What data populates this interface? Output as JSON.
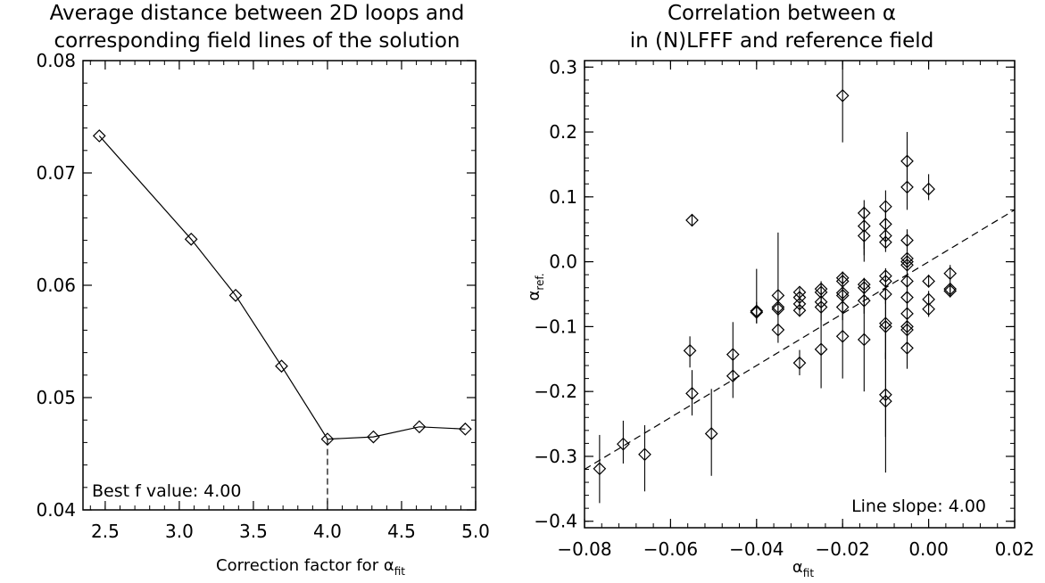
{
  "chart_data": [
    {
      "type": "line",
      "title_lines": [
        "Average distance between 2D loops and",
        "corresponding field lines of the solution"
      ],
      "xlabel_text": "Correction factor for α",
      "xlabel_sub": "fit",
      "ylabel": "",
      "xlim": [
        2.35,
        5.0
      ],
      "ylim": [
        0.04,
        0.08
      ],
      "xticks": [
        "2.5",
        "3.0",
        "3.5",
        "4.0",
        "4.5",
        "5.0"
      ],
      "xtick_values": [
        2.5,
        3.0,
        3.5,
        4.0,
        4.5,
        5.0
      ],
      "yticks": [
        "0.04",
        "0.05",
        "0.06",
        "0.07",
        "0.08"
      ],
      "ytick_values": [
        0.04,
        0.05,
        0.06,
        0.07,
        0.08
      ],
      "marker": "diamond",
      "series": [
        {
          "x": [
            2.46,
            3.08,
            3.38,
            3.69,
            4.0,
            4.31,
            4.62,
            4.93
          ],
          "y": [
            0.0733,
            0.0641,
            0.0591,
            0.0528,
            0.0463,
            0.0465,
            0.0474,
            0.0472
          ]
        }
      ],
      "best_x": 4.0,
      "annotation": "Best f value: 4.00"
    },
    {
      "type": "scatter",
      "title_lines": [
        "Correlation between α",
        "in (N)LFFF and reference field"
      ],
      "xlabel_text": "α",
      "xlabel_sub": "fit",
      "ylabel_text": "α",
      "ylabel_sub": "ref.",
      "xlim": [
        -0.08,
        0.02
      ],
      "ylim": [
        -0.41,
        0.31
      ],
      "xticks": [
        "−0.08",
        "−0.06",
        "−0.04",
        "−0.02",
        "0.00",
        "0.02"
      ],
      "xtick_values": [
        -0.08,
        -0.06,
        -0.04,
        -0.02,
        0.0,
        0.02
      ],
      "yticks": [
        "−0.4",
        "−0.3",
        "−0.2",
        "−0.1",
        "0.0",
        "0.1",
        "0.2",
        "0.3"
      ],
      "ytick_values": [
        -0.4,
        -0.3,
        -0.2,
        -0.1,
        0.0,
        0.1,
        0.2,
        0.3
      ],
      "marker": "diamond",
      "fit_line": {
        "slope": 4.0,
        "intercept": 0.0
      },
      "annotation": "Line slope: 4.00",
      "points": [
        {
          "x": -0.0765,
          "y": -0.319,
          "lo": -0.372,
          "hi": -0.267
        },
        {
          "x": -0.071,
          "y": -0.281,
          "lo": -0.311,
          "hi": -0.245
        },
        {
          "x": -0.066,
          "y": -0.297,
          "lo": -0.354,
          "hi": -0.252
        },
        {
          "x": -0.055,
          "y": 0.064,
          "lo": 0.056,
          "hi": 0.072
        },
        {
          "x": -0.0555,
          "y": -0.137,
          "lo": -0.163,
          "hi": -0.115
        },
        {
          "x": -0.055,
          "y": -0.203,
          "lo": -0.237,
          "hi": -0.167
        },
        {
          "x": -0.0505,
          "y": -0.265,
          "lo": -0.33,
          "hi": -0.196
        },
        {
          "x": -0.0455,
          "y": -0.143,
          "lo": -0.175,
          "hi": -0.093
        },
        {
          "x": -0.0455,
          "y": -0.176,
          "lo": -0.21,
          "hi": -0.142
        },
        {
          "x": -0.04,
          "y": -0.076,
          "lo": -0.095,
          "hi": -0.011
        },
        {
          "x": -0.04,
          "y": -0.078,
          "lo": -0.095,
          "hi": -0.062
        },
        {
          "x": -0.035,
          "y": -0.052,
          "lo": -0.064,
          "hi": 0.045
        },
        {
          "x": -0.035,
          "y": -0.07,
          "lo": -0.085,
          "hi": -0.055
        },
        {
          "x": -0.035,
          "y": -0.073,
          "lo": -0.085,
          "hi": -0.06
        },
        {
          "x": -0.035,
          "y": -0.105,
          "lo": -0.125,
          "hi": -0.085
        },
        {
          "x": -0.03,
          "y": -0.047,
          "lo": -0.055,
          "hi": -0.04
        },
        {
          "x": -0.03,
          "y": -0.055,
          "lo": -0.065,
          "hi": -0.045
        },
        {
          "x": -0.03,
          "y": -0.065,
          "lo": -0.075,
          "hi": -0.055
        },
        {
          "x": -0.03,
          "y": -0.075,
          "lo": -0.085,
          "hi": -0.065
        },
        {
          "x": -0.03,
          "y": -0.156,
          "lo": -0.175,
          "hi": -0.136
        },
        {
          "x": -0.025,
          "y": -0.042,
          "lo": -0.055,
          "hi": -0.03
        },
        {
          "x": -0.025,
          "y": -0.047,
          "lo": -0.06,
          "hi": -0.035
        },
        {
          "x": -0.025,
          "y": -0.062,
          "lo": -0.08,
          "hi": -0.045
        },
        {
          "x": -0.025,
          "y": -0.07,
          "lo": -0.09,
          "hi": -0.05
        },
        {
          "x": -0.025,
          "y": -0.135,
          "lo": -0.195,
          "hi": -0.07
        },
        {
          "x": -0.02,
          "y": 0.256,
          "lo": 0.184,
          "hi": 0.316
        },
        {
          "x": -0.02,
          "y": -0.025,
          "lo": -0.035,
          "hi": -0.015
        },
        {
          "x": -0.02,
          "y": -0.03,
          "lo": -0.04,
          "hi": -0.02
        },
        {
          "x": -0.02,
          "y": -0.048,
          "lo": -0.06,
          "hi": -0.035
        },
        {
          "x": -0.02,
          "y": -0.052,
          "lo": -0.065,
          "hi": -0.04
        },
        {
          "x": -0.02,
          "y": -0.07,
          "lo": -0.09,
          "hi": -0.05
        },
        {
          "x": -0.02,
          "y": -0.115,
          "lo": -0.18,
          "hi": -0.05
        },
        {
          "x": -0.015,
          "y": 0.075,
          "lo": 0.02,
          "hi": 0.095
        },
        {
          "x": -0.015,
          "y": 0.055,
          "lo": 0.01,
          "hi": 0.085
        },
        {
          "x": -0.015,
          "y": 0.04,
          "lo": 0.0,
          "hi": 0.07
        },
        {
          "x": -0.015,
          "y": -0.035,
          "lo": -0.045,
          "hi": -0.025
        },
        {
          "x": -0.015,
          "y": -0.04,
          "lo": -0.06,
          "hi": -0.025
        },
        {
          "x": -0.015,
          "y": -0.06,
          "lo": -0.08,
          "hi": -0.04
        },
        {
          "x": -0.015,
          "y": -0.12,
          "lo": -0.2,
          "hi": -0.04
        },
        {
          "x": -0.01,
          "y": 0.085,
          "lo": 0.06,
          "hi": 0.11
        },
        {
          "x": -0.01,
          "y": 0.058,
          "lo": 0.03,
          "hi": 0.08
        },
        {
          "x": -0.01,
          "y": 0.04,
          "lo": 0.02,
          "hi": 0.065
        },
        {
          "x": -0.01,
          "y": 0.03,
          "lo": 0.015,
          "hi": 0.05
        },
        {
          "x": -0.01,
          "y": -0.022,
          "lo": -0.03,
          "hi": -0.01
        },
        {
          "x": -0.01,
          "y": -0.03,
          "lo": -0.045,
          "hi": -0.015
        },
        {
          "x": -0.01,
          "y": -0.05,
          "lo": -0.065,
          "hi": -0.035
        },
        {
          "x": -0.01,
          "y": -0.095,
          "lo": -0.15,
          "hi": -0.04
        },
        {
          "x": -0.01,
          "y": -0.1,
          "lo": -0.15,
          "hi": -0.05
        },
        {
          "x": -0.01,
          "y": -0.205,
          "lo": -0.27,
          "hi": -0.14
        },
        {
          "x": -0.01,
          "y": -0.215,
          "lo": -0.325,
          "hi": -0.1
        },
        {
          "x": -0.005,
          "y": 0.155,
          "lo": 0.115,
          "hi": 0.2
        },
        {
          "x": -0.005,
          "y": 0.115,
          "lo": 0.08,
          "hi": 0.15
        },
        {
          "x": -0.005,
          "y": 0.033,
          "lo": 0.015,
          "hi": 0.05
        },
        {
          "x": -0.005,
          "y": 0.005,
          "lo": -0.005,
          "hi": 0.015
        },
        {
          "x": -0.005,
          "y": 0.0,
          "lo": -0.01,
          "hi": 0.01
        },
        {
          "x": -0.005,
          "y": -0.005,
          "lo": -0.015,
          "hi": 0.005
        },
        {
          "x": -0.005,
          "y": -0.03,
          "lo": -0.05,
          "hi": -0.01
        },
        {
          "x": -0.005,
          "y": -0.055,
          "lo": -0.075,
          "hi": -0.035
        },
        {
          "x": -0.005,
          "y": -0.08,
          "lo": -0.1,
          "hi": -0.06
        },
        {
          "x": -0.005,
          "y": -0.1,
          "lo": -0.115,
          "hi": -0.085
        },
        {
          "x": -0.005,
          "y": -0.105,
          "lo": -0.12,
          "hi": -0.09
        },
        {
          "x": -0.005,
          "y": -0.133,
          "lo": -0.165,
          "hi": -0.1
        },
        {
          "x": 0.0,
          "y": 0.112,
          "lo": 0.095,
          "hi": 0.135
        },
        {
          "x": 0.0,
          "y": -0.03,
          "lo": -0.04,
          "hi": -0.02
        },
        {
          "x": 0.0,
          "y": -0.058,
          "lo": -0.07,
          "hi": -0.045
        },
        {
          "x": 0.0,
          "y": -0.073,
          "lo": -0.085,
          "hi": -0.06
        },
        {
          "x": 0.005,
          "y": -0.018,
          "lo": -0.03,
          "hi": -0.005
        },
        {
          "x": 0.005,
          "y": -0.042,
          "lo": -0.05,
          "hi": -0.03
        },
        {
          "x": 0.005,
          "y": -0.045,
          "lo": -0.055,
          "hi": -0.035
        }
      ]
    }
  ]
}
